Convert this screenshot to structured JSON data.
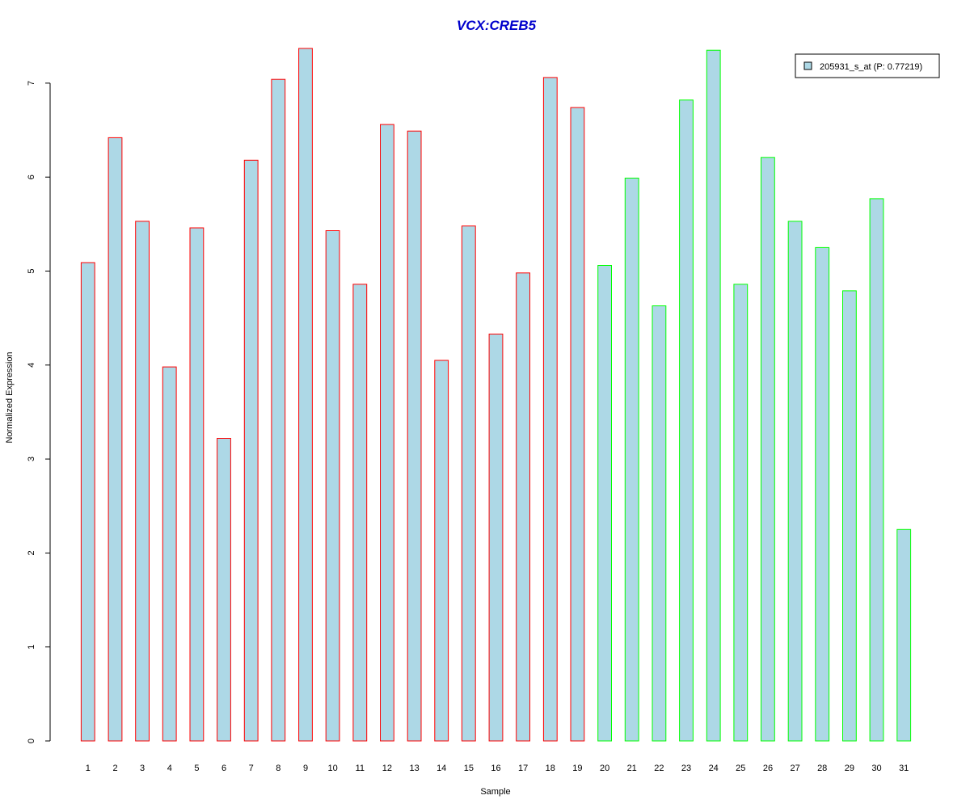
{
  "chart_data": {
    "type": "bar",
    "title": "VCX:CREB5",
    "xlabel": "Sample",
    "ylabel": "Normalized Expression",
    "ylim": [
      0,
      7.4
    ],
    "yticks": [
      "0",
      "1",
      "2",
      "3",
      "4",
      "5",
      "6",
      "7"
    ],
    "categories": [
      "1",
      "2",
      "3",
      "4",
      "5",
      "6",
      "7",
      "8",
      "9",
      "10",
      "11",
      "12",
      "13",
      "14",
      "15",
      "16",
      "17",
      "18",
      "19",
      "20",
      "21",
      "22",
      "23",
      "24",
      "25",
      "26",
      "27",
      "28",
      "29",
      "30",
      "31"
    ],
    "series": [
      {
        "name": "205931_s_at (P: 0.77219)",
        "values": [
          5.09,
          6.42,
          5.53,
          3.98,
          5.46,
          3.22,
          6.18,
          7.04,
          7.37,
          5.43,
          4.86,
          6.56,
          6.49,
          4.05,
          5.48,
          4.33,
          4.98,
          7.06,
          6.74,
          5.06,
          5.99,
          4.63,
          6.82,
          7.35,
          4.86,
          6.21,
          5.53,
          5.25,
          4.79,
          5.77,
          2.25
        ]
      }
    ],
    "groups": [
      {
        "color": "#ff0000",
        "samples": [
          1,
          19
        ]
      },
      {
        "color": "#00ff00",
        "samples": [
          20,
          31
        ]
      }
    ],
    "bar_fill": "#add8e6",
    "title_color": "#0000cc",
    "legend": {
      "label": "205931_s_at (P: 0.77219)",
      "position": "top-right"
    }
  }
}
